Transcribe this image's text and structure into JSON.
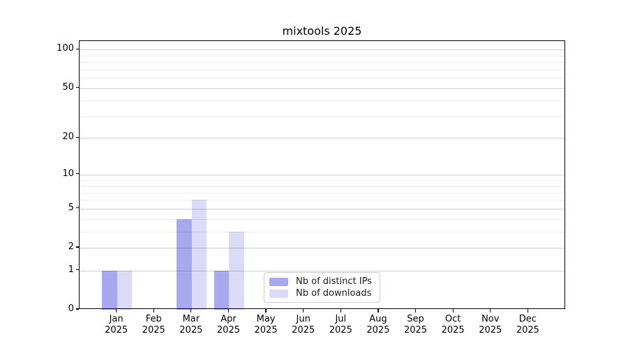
{
  "title": "mixtools 2025",
  "chart_data": {
    "type": "bar",
    "title": "mixtools 2025",
    "categories": [
      "Jan",
      "Feb",
      "Mar",
      "Apr",
      "May",
      "Jun",
      "Jul",
      "Aug",
      "Sep",
      "Oct",
      "Nov",
      "Dec"
    ],
    "x_sublabel": "2025",
    "series": [
      {
        "name": "Nb of distinct IPs",
        "color": "rgba(0,0,204,0.34)",
        "values": [
          1,
          0,
          4,
          1,
          0,
          0,
          0,
          0,
          0,
          0,
          0,
          0
        ]
      },
      {
        "name": "Nb of downloads",
        "color": "rgba(0,0,204,0.14)",
        "values": [
          1,
          0,
          6,
          3,
          0,
          0,
          0,
          0,
          0,
          0,
          0,
          0
        ]
      }
    ],
    "y_scale": "log10(1+v)",
    "y_ticks": [
      0,
      1,
      2,
      5,
      10,
      20,
      50,
      100
    ],
    "y_tick_labels": [
      "0",
      "1",
      "2",
      "5",
      "10",
      "20",
      "50",
      "100"
    ],
    "y_minor_gridlines": [
      3,
      4,
      6,
      7,
      8,
      9,
      30,
      40,
      60,
      70,
      80,
      90
    ],
    "ylim": [
      0,
      116
    ],
    "grid": true,
    "legend_position": "lower center",
    "legend_labels": [
      "Nb of distinct IPs",
      "Nb of downloads"
    ]
  },
  "colors": {
    "bar_distinct_ips": "rgba(0,0,204,0.34)",
    "bar_downloads": "rgba(0,0,204,0.14)",
    "major_grid": "#cdcdcd",
    "minor_grid": "#ebebeb",
    "axis": "#000000",
    "text": "#000000",
    "legend_border": "#cbcbcb",
    "background": "#ffffff"
  }
}
